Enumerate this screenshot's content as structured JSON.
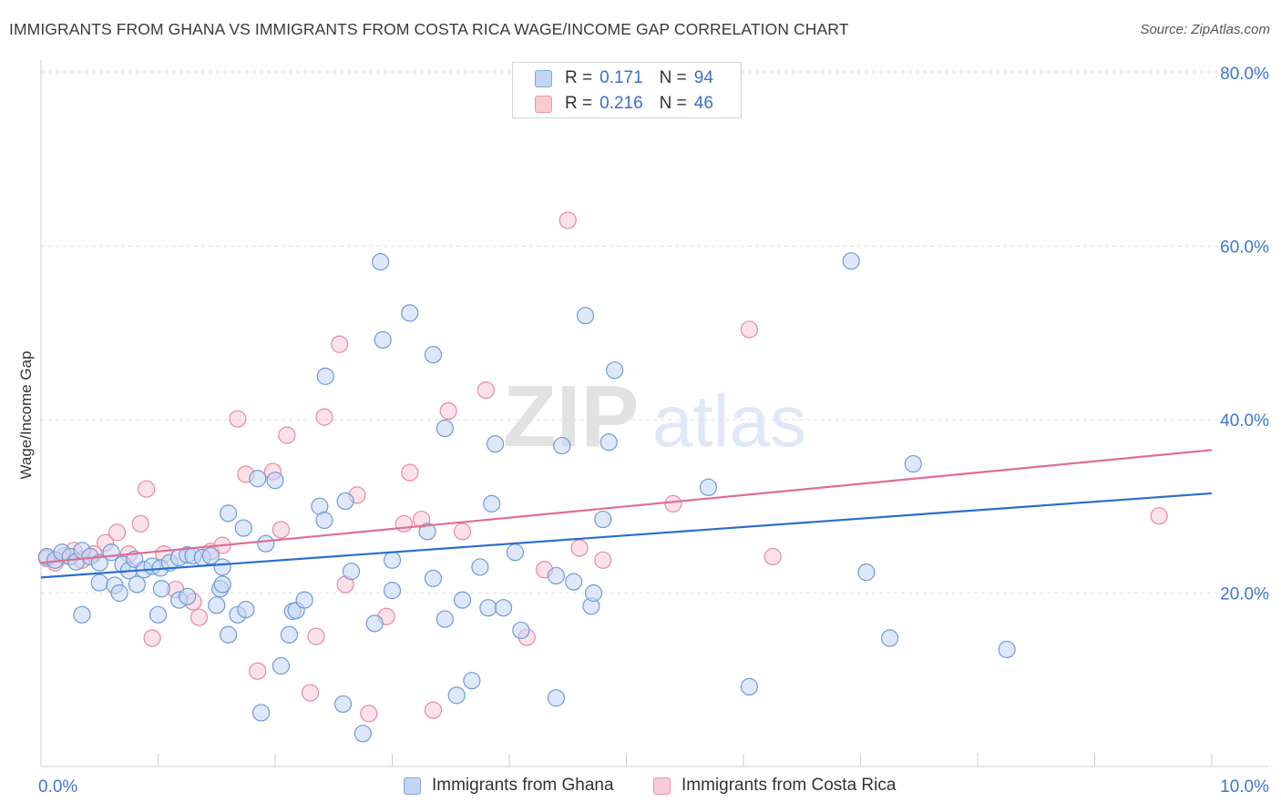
{
  "title": "IMMIGRANTS FROM GHANA VS IMMIGRANTS FROM COSTA RICA WAGE/INCOME GAP CORRELATION CHART",
  "source": "Source: ZipAtlas.com",
  "watermark": "ZIPatlas",
  "legend": {
    "r_label": "R =",
    "n_label": "N =",
    "entries": [
      {
        "r": "0.171",
        "n": "94"
      },
      {
        "r": "0.216",
        "n": "46"
      }
    ]
  },
  "colors": {
    "ghana_fill": "#c2d6f3",
    "ghana_stroke": "#6f9ad8",
    "ghana_line": "#2a6fcb",
    "costa_fill": "#f7cad6",
    "costa_stroke": "#e58aa6",
    "costa_line": "#e06d95",
    "tick_label": "#3f78cf",
    "grid": "#dddddd"
  },
  "chart_data": {
    "type": "scatter",
    "title": "IMMIGRANTS FROM GHANA VS IMMIGRANTS FROM COSTA RICA WAGE/INCOME GAP CORRELATION CHART",
    "xlabel": "",
    "ylabel": "Wage/Income Gap",
    "xlim": [
      0,
      10
    ],
    "ylim": [
      0,
      82
    ],
    "x_tick_labels": [
      "0.0%",
      "10.0%"
    ],
    "y_ticks": [
      20,
      40,
      60,
      80
    ],
    "y_tick_labels": [
      "20.0%",
      "40.0%",
      "60.0%",
      "80.0%"
    ],
    "grid": true,
    "legend_position": "top-center",
    "series": [
      {
        "name": "Immigrants from Ghana",
        "r": 0.171,
        "n": 94,
        "trend": [
          [
            0,
            21.8
          ],
          [
            10,
            31.5
          ]
        ],
        "points": [
          [
            0.05,
            24.2
          ],
          [
            0.12,
            23.8
          ],
          [
            0.18,
            24.7
          ],
          [
            0.25,
            24.2
          ],
          [
            0.3,
            23.6
          ],
          [
            0.35,
            24.9
          ],
          [
            0.42,
            24.2
          ],
          [
            0.5,
            23.5
          ],
          [
            0.6,
            24.7
          ],
          [
            0.7,
            23.3
          ],
          [
            0.75,
            22.6
          ],
          [
            0.8,
            23.9
          ],
          [
            0.88,
            22.7
          ],
          [
            0.95,
            23.1
          ],
          [
            1.02,
            22.9
          ],
          [
            1.1,
            23.5
          ],
          [
            1.18,
            24.1
          ],
          [
            1.25,
            24.4
          ],
          [
            1.3,
            24.3
          ],
          [
            1.38,
            24.1
          ],
          [
            1.45,
            24.3
          ],
          [
            1.55,
            23.0
          ],
          [
            0.35,
            17.5
          ],
          [
            0.5,
            21.2
          ],
          [
            0.63,
            20.9
          ],
          [
            0.67,
            20.0
          ],
          [
            0.82,
            21.0
          ],
          [
            1.0,
            17.5
          ],
          [
            1.03,
            20.5
          ],
          [
            1.18,
            19.2
          ],
          [
            1.25,
            19.6
          ],
          [
            1.5,
            18.6
          ],
          [
            1.53,
            20.5
          ],
          [
            1.55,
            21.0
          ],
          [
            1.6,
            15.2
          ],
          [
            1.68,
            17.5
          ],
          [
            1.75,
            18.1
          ],
          [
            1.6,
            29.2
          ],
          [
            1.73,
            27.5
          ],
          [
            1.85,
            33.2
          ],
          [
            1.92,
            25.7
          ],
          [
            2.0,
            33.0
          ],
          [
            2.15,
            17.9
          ],
          [
            2.18,
            18.0
          ],
          [
            2.25,
            19.2
          ],
          [
            2.12,
            15.2
          ],
          [
            2.05,
            11.6
          ],
          [
            1.88,
            6.2
          ],
          [
            2.38,
            30.0
          ],
          [
            2.42,
            28.4
          ],
          [
            2.43,
            45.0
          ],
          [
            2.6,
            30.6
          ],
          [
            2.65,
            22.5
          ],
          [
            2.58,
            7.2
          ],
          [
            2.75,
            3.8
          ],
          [
            2.85,
            16.5
          ],
          [
            2.9,
            58.2
          ],
          [
            2.92,
            49.2
          ],
          [
            3.0,
            23.8
          ],
          [
            3.0,
            20.3
          ],
          [
            3.15,
            52.3
          ],
          [
            3.3,
            27.1
          ],
          [
            3.35,
            47.5
          ],
          [
            3.35,
            21.7
          ],
          [
            3.45,
            17.0
          ],
          [
            3.45,
            39.0
          ],
          [
            3.55,
            8.2
          ],
          [
            3.6,
            19.2
          ],
          [
            3.68,
            9.9
          ],
          [
            3.75,
            23.0
          ],
          [
            3.82,
            18.3
          ],
          [
            3.85,
            30.3
          ],
          [
            3.88,
            37.2
          ],
          [
            3.95,
            18.3
          ],
          [
            4.05,
            24.7
          ],
          [
            4.1,
            15.7
          ],
          [
            4.4,
            22.0
          ],
          [
            4.4,
            7.9
          ],
          [
            4.45,
            37.0
          ],
          [
            4.55,
            21.3
          ],
          [
            4.7,
            18.5
          ],
          [
            4.72,
            20.0
          ],
          [
            4.65,
            52.0
          ],
          [
            4.8,
            28.5
          ],
          [
            4.85,
            37.4
          ],
          [
            4.9,
            45.7
          ],
          [
            5.7,
            32.2
          ],
          [
            6.05,
            9.2
          ],
          [
            6.92,
            58.3
          ],
          [
            7.05,
            22.4
          ],
          [
            7.25,
            14.8
          ],
          [
            7.45,
            34.9
          ],
          [
            8.25,
            13.5
          ]
        ]
      },
      {
        "name": "Immigrants from Costa Rica",
        "r": 0.216,
        "n": 46,
        "trend": [
          [
            0,
            23.5
          ],
          [
            10,
            36.5
          ]
        ],
        "points": [
          [
            0.05,
            24.0
          ],
          [
            0.12,
            23.5
          ],
          [
            0.2,
            24.3
          ],
          [
            0.28,
            24.9
          ],
          [
            0.35,
            23.8
          ],
          [
            0.45,
            24.5
          ],
          [
            0.55,
            25.8
          ],
          [
            0.65,
            27.0
          ],
          [
            0.75,
            24.5
          ],
          [
            0.85,
            28.0
          ],
          [
            0.9,
            32.0
          ],
          [
            0.95,
            14.8
          ],
          [
            1.05,
            24.5
          ],
          [
            1.15,
            20.4
          ],
          [
            1.3,
            19.0
          ],
          [
            1.35,
            17.2
          ],
          [
            1.45,
            24.8
          ],
          [
            1.55,
            25.5
          ],
          [
            1.68,
            40.1
          ],
          [
            1.75,
            33.7
          ],
          [
            1.85,
            11.0
          ],
          [
            1.98,
            34.0
          ],
          [
            2.05,
            27.3
          ],
          [
            2.1,
            38.2
          ],
          [
            2.3,
            8.5
          ],
          [
            2.35,
            15.0
          ],
          [
            2.42,
            40.3
          ],
          [
            2.55,
            48.7
          ],
          [
            2.6,
            21.0
          ],
          [
            2.7,
            31.3
          ],
          [
            2.8,
            6.1
          ],
          [
            2.95,
            17.3
          ],
          [
            3.1,
            28.0
          ],
          [
            3.15,
            33.9
          ],
          [
            3.25,
            28.5
          ],
          [
            3.35,
            6.5
          ],
          [
            3.48,
            41.0
          ],
          [
            3.6,
            27.1
          ],
          [
            3.8,
            43.4
          ],
          [
            4.15,
            14.9
          ],
          [
            4.3,
            22.7
          ],
          [
            4.5,
            63.0
          ],
          [
            4.6,
            25.2
          ],
          [
            4.8,
            23.8
          ],
          [
            5.4,
            30.3
          ],
          [
            6.05,
            50.4
          ],
          [
            6.25,
            24.2
          ],
          [
            9.55,
            28.9
          ]
        ]
      }
    ]
  }
}
